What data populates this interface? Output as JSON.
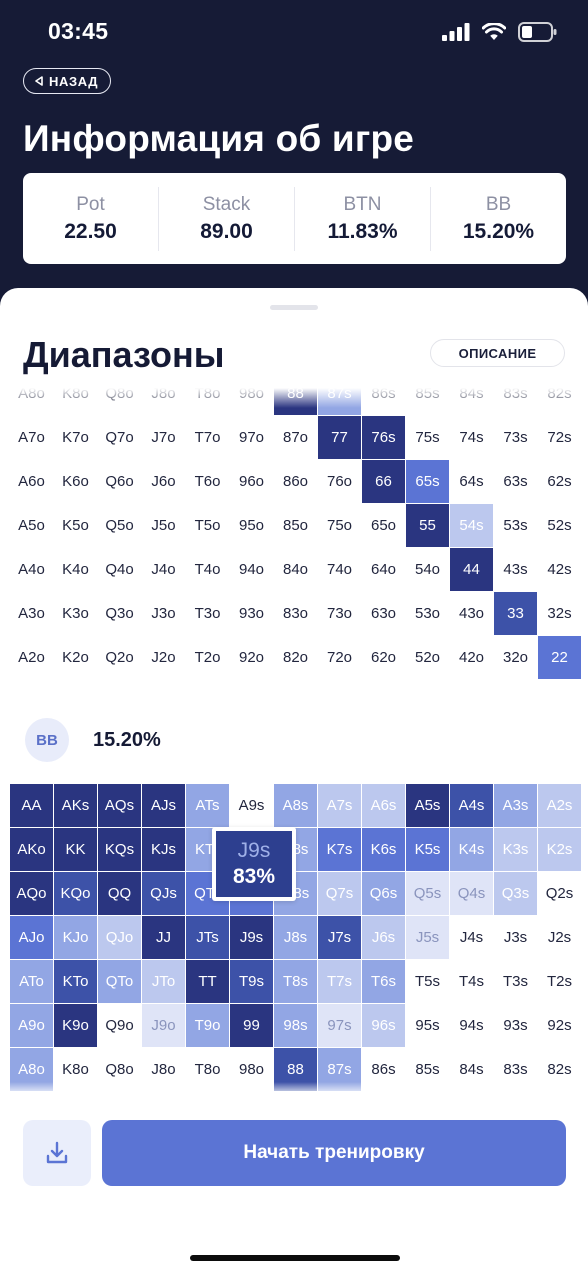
{
  "status_bar": {
    "time": "03:45"
  },
  "header": {
    "back_label": "НАЗАД",
    "title": "Информация об игре"
  },
  "stats": [
    {
      "label": "Pot",
      "value": "22.50"
    },
    {
      "label": "Stack",
      "value": "89.00"
    },
    {
      "label": "BTN",
      "value": "11.83%"
    },
    {
      "label": "BB",
      "value": "15.20%"
    }
  ],
  "sheet": {
    "title": "Диапазоны",
    "description_button": "ОПИСАНИЕ"
  },
  "colors": {
    "level_0": "#ffffff",
    "level_1": "#dfe4f7",
    "level_2": "#bcc8ee",
    "level_3": "#92a6e4",
    "level_4": "#5b74d4",
    "level_5": "#3d52a8",
    "level_6": "#2a3580",
    "header_bg": "#161b36",
    "accent": "#5b74d4"
  },
  "btn_range": {
    "visible_rows": [
      [
        "A8o",
        "K8o",
        "Q8o",
        "J8o",
        "T8o",
        "98o",
        "88",
        "87s",
        "86s",
        "85s",
        "84s",
        "83s",
        "82s"
      ],
      [
        "A7o",
        "K7o",
        "Q7o",
        "J7o",
        "T7o",
        "97o",
        "87o",
        "77",
        "76s",
        "75s",
        "74s",
        "73s",
        "72s"
      ],
      [
        "A6o",
        "K6o",
        "Q6o",
        "J6o",
        "T6o",
        "96o",
        "86o",
        "76o",
        "66",
        "65s",
        "64s",
        "63s",
        "62s"
      ],
      [
        "A5o",
        "K5o",
        "Q5o",
        "J5o",
        "T5o",
        "95o",
        "85o",
        "75o",
        "65o",
        "55",
        "54s",
        "53s",
        "52s"
      ],
      [
        "A4o",
        "K4o",
        "Q4o",
        "J4o",
        "T4o",
        "94o",
        "84o",
        "74o",
        "64o",
        "54o",
        "44",
        "43s",
        "42s"
      ],
      [
        "A3o",
        "K3o",
        "Q3o",
        "J3o",
        "T3o",
        "93o",
        "83o",
        "73o",
        "63o",
        "53o",
        "43o",
        "33",
        "32s"
      ],
      [
        "A2o",
        "K2o",
        "Q2o",
        "J2o",
        "T2o",
        "92o",
        "82o",
        "72o",
        "62o",
        "52o",
        "42o",
        "32o",
        "22"
      ]
    ],
    "levels": [
      [
        0,
        0,
        0,
        0,
        0,
        0,
        6,
        3,
        0,
        0,
        0,
        0,
        0
      ],
      [
        0,
        0,
        0,
        0,
        0,
        0,
        0,
        6,
        6,
        0,
        0,
        0,
        0
      ],
      [
        0,
        0,
        0,
        0,
        0,
        0,
        0,
        0,
        6,
        4,
        0,
        0,
        0
      ],
      [
        0,
        0,
        0,
        0,
        0,
        0,
        0,
        0,
        0,
        6,
        2,
        0,
        0
      ],
      [
        0,
        0,
        0,
        0,
        0,
        0,
        0,
        0,
        0,
        0,
        6,
        0,
        0
      ],
      [
        0,
        0,
        0,
        0,
        0,
        0,
        0,
        0,
        0,
        0,
        0,
        5,
        0
      ],
      [
        0,
        0,
        0,
        0,
        0,
        0,
        0,
        0,
        0,
        0,
        0,
        0,
        4
      ]
    ]
  },
  "bb_player": {
    "label": "BB",
    "percent": "15.20%"
  },
  "bb_range": {
    "visible_rows": [
      [
        "AA",
        "AKs",
        "AQs",
        "AJs",
        "ATs",
        "A9s",
        "A8s",
        "A7s",
        "A6s",
        "A5s",
        "A4s",
        "A3s",
        "A2s"
      ],
      [
        "AKo",
        "KK",
        "KQs",
        "KJs",
        "KTs",
        "K9s",
        "K8s",
        "K7s",
        "K6s",
        "K5s",
        "K4s",
        "K3s",
        "K2s"
      ],
      [
        "AQo",
        "KQo",
        "QQ",
        "QJs",
        "QTs",
        "Q9s",
        "Q8s",
        "Q7s",
        "Q6s",
        "Q5s",
        "Q4s",
        "Q3s",
        "Q2s"
      ],
      [
        "AJo",
        "KJo",
        "QJo",
        "JJ",
        "JTs",
        "J9s",
        "J8s",
        "J7s",
        "J6s",
        "J5s",
        "J4s",
        "J3s",
        "J2s"
      ],
      [
        "ATo",
        "KTo",
        "QTo",
        "JTo",
        "TT",
        "T9s",
        "T8s",
        "T7s",
        "T6s",
        "T5s",
        "T4s",
        "T3s",
        "T2s"
      ],
      [
        "A9o",
        "K9o",
        "Q9o",
        "J9o",
        "T9o",
        "99",
        "98s",
        "97s",
        "96s",
        "95s",
        "94s",
        "93s",
        "92s"
      ],
      [
        "A8o",
        "K8o",
        "Q8o",
        "J8o",
        "T8o",
        "98o",
        "88",
        "87s",
        "86s",
        "85s",
        "84s",
        "83s",
        "82s"
      ]
    ],
    "levels": [
      [
        6,
        6,
        6,
        6,
        3,
        0,
        3,
        2,
        2,
        6,
        5,
        3,
        2
      ],
      [
        6,
        6,
        6,
        6,
        3,
        3,
        3,
        4,
        4,
        4,
        3,
        2,
        2
      ],
      [
        6,
        5,
        6,
        5,
        4,
        4,
        3,
        2,
        3,
        1,
        1,
        2,
        0
      ],
      [
        4,
        3,
        2,
        6,
        5,
        6,
        3,
        5,
        2,
        1,
        0,
        0,
        0
      ],
      [
        3,
        5,
        3,
        2,
        6,
        5,
        3,
        2,
        3,
        0,
        0,
        0,
        0
      ],
      [
        3,
        6,
        0,
        1,
        3,
        6,
        3,
        1,
        2,
        0,
        0,
        0,
        0
      ],
      [
        3,
        0,
        0,
        0,
        0,
        0,
        5,
        3,
        0,
        0,
        0,
        0,
        0
      ]
    ]
  },
  "tooltip": {
    "hand": "J9s",
    "percent": "83%"
  },
  "actions": {
    "start_label": "Начать тренировку",
    "download_icon": "download-icon"
  }
}
